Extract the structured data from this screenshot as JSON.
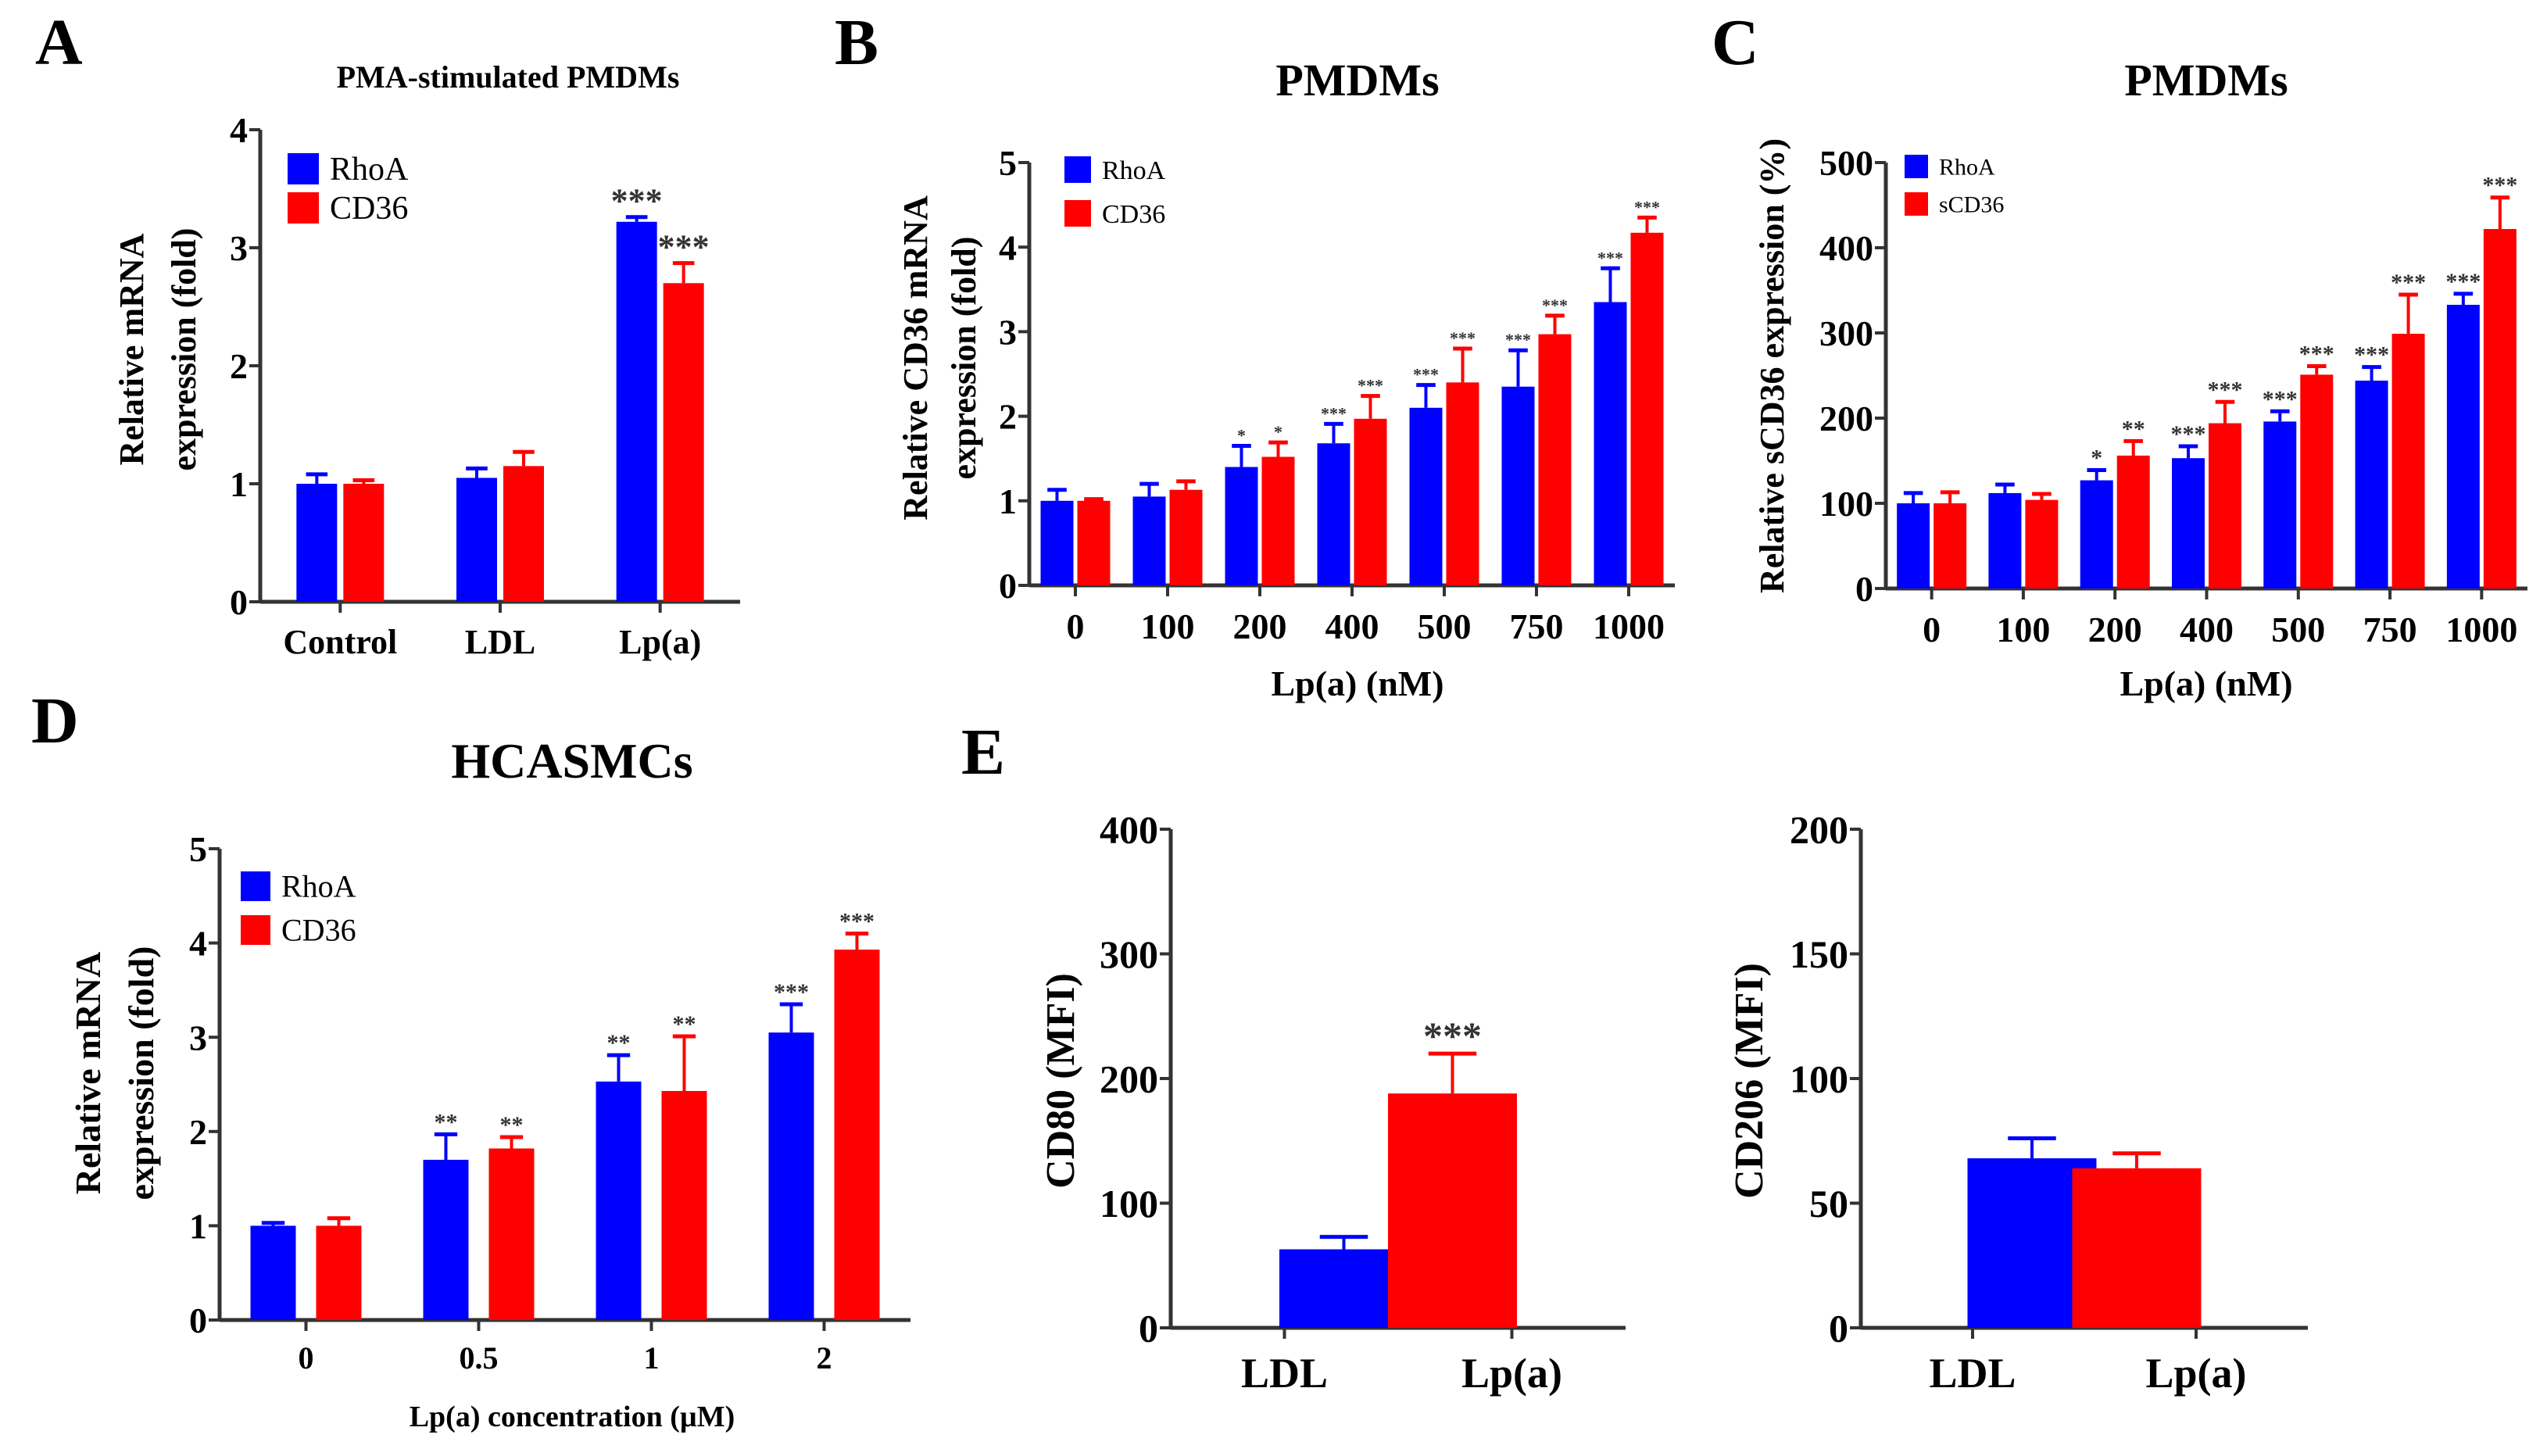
{
  "colors": {
    "RhoA": "#0000ff",
    "CD36": "#ff0000",
    "axis": "#333333"
  },
  "chart_data": [
    {
      "panel": "A",
      "type": "bar",
      "title": "PMA-stimulated PMDMs",
      "ylabel": [
        "Relative mRNA",
        "expression (fold)"
      ],
      "xlabel": "",
      "categories": [
        "Control",
        "LDL",
        "Lp(a)"
      ],
      "ylim": [
        0,
        4
      ],
      "yticks": [
        0,
        1,
        2,
        3,
        4
      ],
      "series": [
        {
          "name": "RhoA",
          "values": [
            1.0,
            1.05,
            3.22
          ],
          "errors": [
            0.08,
            0.08,
            0.04
          ],
          "stars": [
            "",
            "",
            "***"
          ]
        },
        {
          "name": "CD36",
          "values": [
            1.0,
            1.15,
            2.7
          ],
          "errors": [
            0.03,
            0.12,
            0.17
          ],
          "stars": [
            "",
            "",
            "***"
          ]
        }
      ]
    },
    {
      "panel": "B",
      "type": "bar",
      "title": "PMDMs",
      "ylabel": [
        "Relative CD36 mRNA",
        "expression (fold)"
      ],
      "xlabel": "Lp(a) (nM)",
      "categories": [
        "0",
        "100",
        "200",
        "400",
        "500",
        "750",
        "1000"
      ],
      "ylim": [
        0,
        5
      ],
      "yticks": [
        0,
        1,
        2,
        3,
        4,
        5
      ],
      "series": [
        {
          "name": "RhoA",
          "values": [
            1.0,
            1.05,
            1.4,
            1.68,
            2.1,
            2.35,
            3.35
          ],
          "errors": [
            0.13,
            0.15,
            0.25,
            0.23,
            0.27,
            0.43,
            0.4
          ],
          "stars": [
            "",
            "",
            "*",
            "***",
            "***",
            "***",
            "***"
          ]
        },
        {
          "name": "CD36",
          "values": [
            1.0,
            1.13,
            1.52,
            1.97,
            2.4,
            2.97,
            4.17
          ],
          "errors": [
            0.02,
            0.1,
            0.17,
            0.27,
            0.4,
            0.22,
            0.18
          ],
          "stars": [
            "",
            "",
            "*",
            "***",
            "***",
            "***",
            "***"
          ]
        }
      ]
    },
    {
      "panel": "C",
      "type": "bar",
      "title": "PMDMs",
      "ylabel": [
        "Relative sCD36 expression (%)"
      ],
      "xlabel": "Lp(a) (nM)",
      "categories": [
        "0",
        "100",
        "200",
        "400",
        "500",
        "750",
        "1000"
      ],
      "ylim": [
        0,
        500
      ],
      "yticks": [
        0,
        100,
        200,
        300,
        400,
        500
      ],
      "series": [
        {
          "name": "RhoA",
          "values": [
            100,
            112,
            127,
            153,
            196,
            244,
            333
          ],
          "errors": [
            12,
            10,
            12,
            14,
            12,
            16,
            13
          ],
          "stars": [
            "",
            "",
            "*",
            "***",
            "***",
            "***",
            "***"
          ]
        },
        {
          "name": "sCD36",
          "values": [
            100,
            104,
            156,
            194,
            251,
            299,
            422
          ],
          "errors": [
            13,
            7,
            17,
            25,
            10,
            46,
            37
          ],
          "stars": [
            "",
            "",
            "**",
            "***",
            "***",
            "***",
            "***"
          ]
        }
      ]
    },
    {
      "panel": "D",
      "type": "bar",
      "title": "HCASMCs",
      "ylabel": [
        "Relative mRNA",
        "expression (fold)"
      ],
      "xlabel": "Lp(a) concentration (µM)",
      "categories": [
        "0",
        "0.5",
        "1",
        "2"
      ],
      "ylim": [
        0,
        5
      ],
      "yticks": [
        0,
        1,
        2,
        3,
        4,
        5
      ],
      "series": [
        {
          "name": "RhoA",
          "values": [
            1.0,
            1.7,
            2.53,
            3.05
          ],
          "errors": [
            0.03,
            0.27,
            0.28,
            0.3
          ],
          "stars": [
            "",
            "**",
            "**",
            "***"
          ]
        },
        {
          "name": "CD36",
          "values": [
            1.0,
            1.82,
            2.43,
            3.93
          ],
          "errors": [
            0.08,
            0.12,
            0.58,
            0.17
          ],
          "stars": [
            "",
            "**",
            "**",
            "***"
          ]
        }
      ]
    },
    {
      "panel": "E",
      "type": "bar",
      "title": "",
      "ylabel": [
        "CD80 (MFI)"
      ],
      "xlabel": "",
      "categories": [
        "LDL",
        "Lp(a)"
      ],
      "ylim": [
        0,
        400
      ],
      "yticks": [
        0,
        100,
        200,
        300,
        400
      ],
      "series": [
        {
          "name": "MFI",
          "values": [
            63,
            188
          ],
          "errors": [
            10,
            32
          ],
          "stars": [
            "",
            "***"
          ]
        }
      ]
    },
    {
      "panel": "",
      "type": "bar",
      "title": "",
      "ylabel": [
        "CD206 (MFI)"
      ],
      "xlabel": "",
      "categories": [
        "LDL",
        "Lp(a)"
      ],
      "ylim": [
        0,
        200
      ],
      "yticks": [
        0,
        50,
        100,
        150,
        200
      ],
      "series": [
        {
          "name": "MFI",
          "values": [
            68,
            64
          ],
          "errors": [
            8,
            6
          ],
          "stars": [
            "",
            ""
          ]
        }
      ]
    }
  ]
}
